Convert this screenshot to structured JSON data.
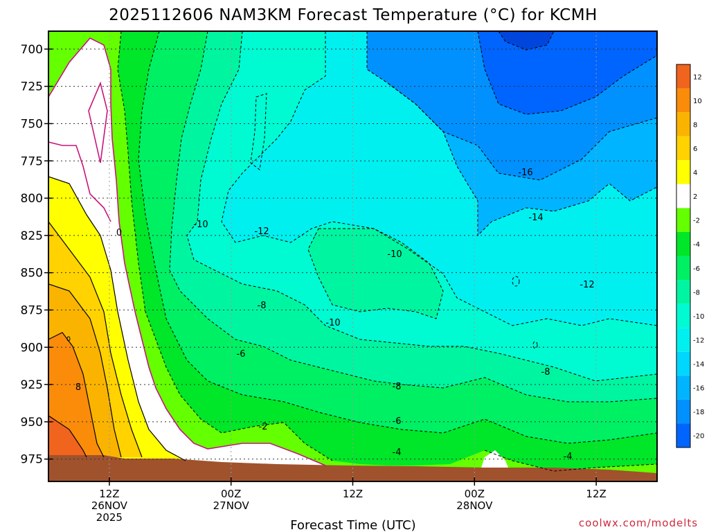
{
  "chart_data": {
    "type": "heatmap",
    "title": "2025112606 NAM3KM Forecast Temperature (°C) for KCMH",
    "xlabel": "Forecast Time (UTC)",
    "ylabel": "",
    "credit": "coolwx.com/modelts",
    "x_ticks": [
      {
        "hour": 6,
        "line1": "12Z",
        "line2": "26NOV",
        "line3": "2025"
      },
      {
        "hour": 18,
        "line1": "00Z",
        "line2": "27NOV",
        "line3": ""
      },
      {
        "hour": 30,
        "line1": "12Z",
        "line2": "",
        "line3": ""
      },
      {
        "hour": 42,
        "line1": "00Z",
        "line2": "28NOV",
        "line3": ""
      },
      {
        "hour": 54,
        "line1": "12Z",
        "line2": "",
        "line3": ""
      }
    ],
    "xlim": [
      0,
      60
    ],
    "y_ticks": [
      "700",
      "725",
      "750",
      "775",
      "800",
      "825",
      "850",
      "875",
      "900",
      "925",
      "950",
      "975"
    ],
    "ylim_hpa": [
      688,
      990
    ],
    "colorbar": {
      "labels": [
        "12",
        "10",
        "8",
        "6",
        "4",
        "2",
        "-2",
        "-4",
        "-6",
        "-8",
        "-10",
        "-12",
        "-14",
        "-16",
        "-18",
        "-20"
      ],
      "colors": [
        "#f0641e",
        "#fa8c0a",
        "#fab400",
        "#ffd200",
        "#ffff00",
        "#ffffff",
        "#64ff00",
        "#00e628",
        "#00f064",
        "#00f5a0",
        "#00fad2",
        "#00f0f0",
        "#00d7ff",
        "#00b4ff",
        "#0091ff",
        "#0064ff"
      ]
    },
    "contour_labels": [
      "0",
      "-10",
      "-12",
      "-10",
      "-8",
      "-10",
      "-6",
      "-2",
      "-8",
      "-6",
      "-4",
      "-16",
      "-14",
      "-12",
      "-8",
      "-4",
      "8"
    ]
  }
}
